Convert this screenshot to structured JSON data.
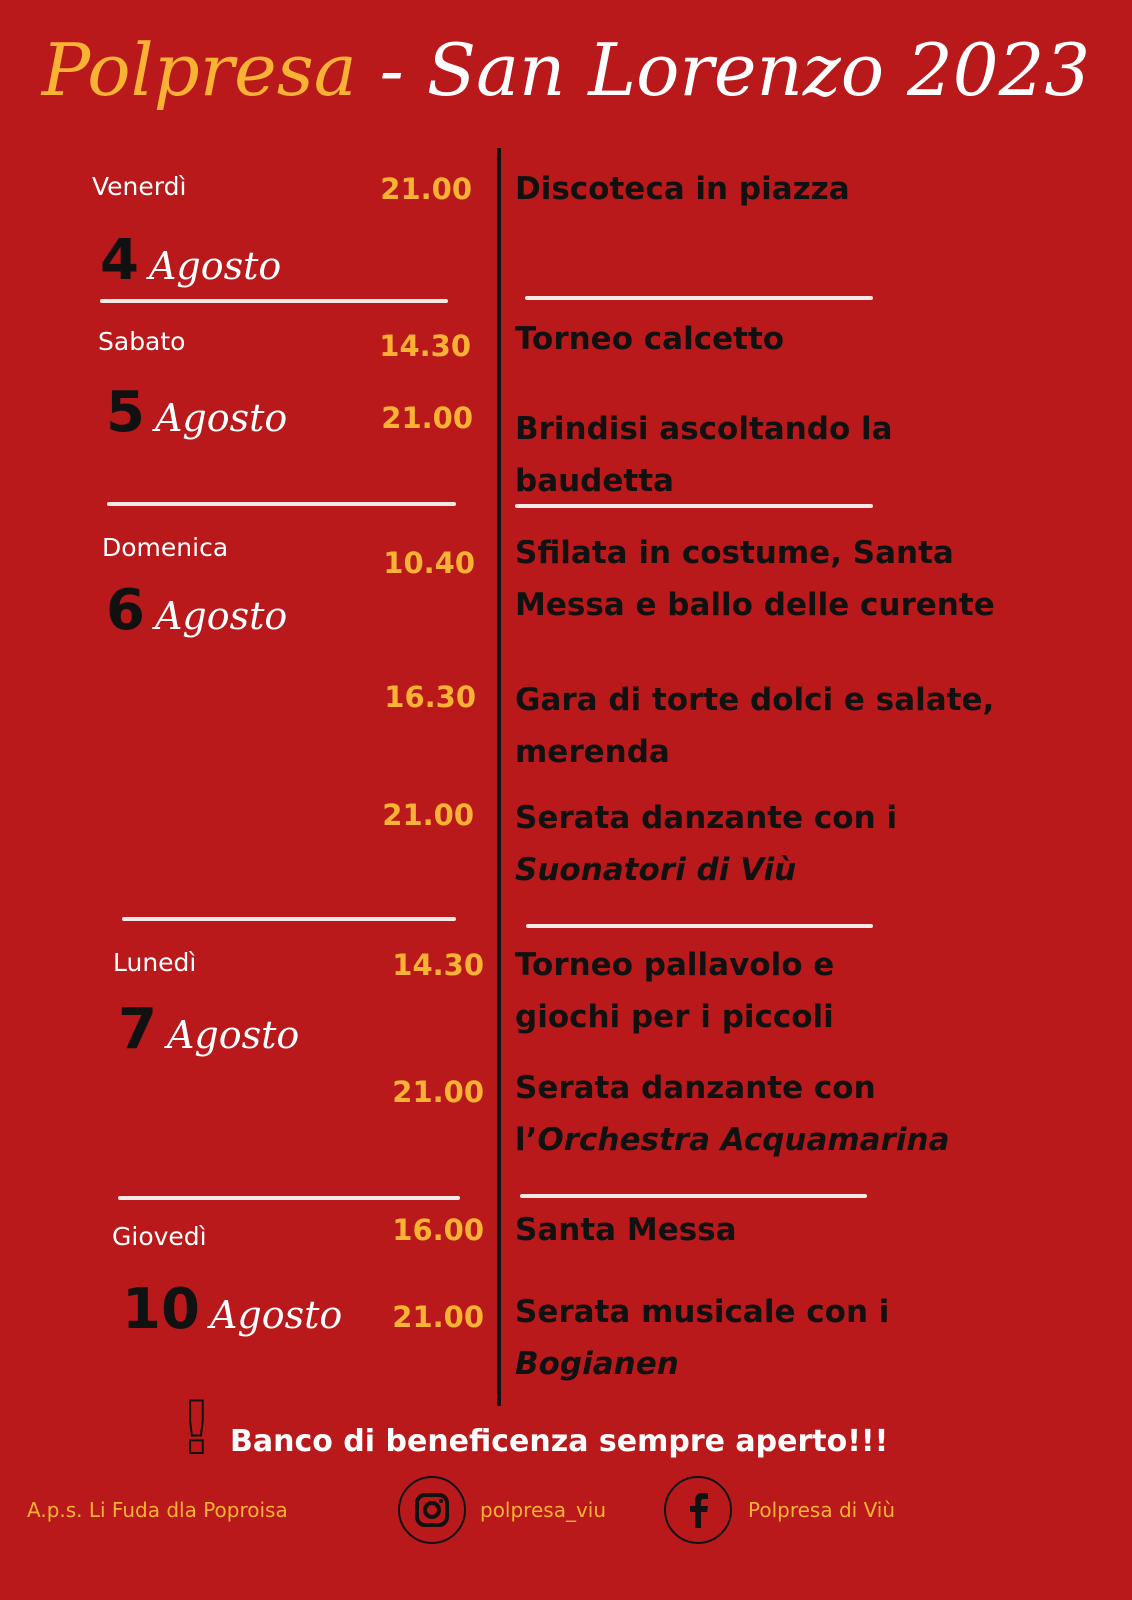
{
  "title": {
    "part1": "Polpresa",
    "part2": " - San Lorenzo 2023"
  },
  "colors": {
    "background": "#b9191b",
    "accent": "#f9b233",
    "text": "#111111",
    "light": "#ffffff"
  },
  "days": [
    {
      "weekday": "Venerdì",
      "day": "4",
      "month": "Agosto"
    },
    {
      "weekday": "Sabato",
      "day": "5",
      "month": "Agosto"
    },
    {
      "weekday": "Domenica",
      "day": "6",
      "month": "Agosto"
    },
    {
      "weekday": "Lunedì",
      "day": "7",
      "month": "Agosto"
    },
    {
      "weekday": "Giovedì",
      "day": "10",
      "month": "Agosto"
    }
  ],
  "events": [
    {
      "time": "21.00",
      "lines": [
        {
          "text": "Discoteca in piazza"
        }
      ]
    },
    {
      "time": "14.30",
      "lines": [
        {
          "text": "Torneo calcetto"
        }
      ]
    },
    {
      "time": "21.00",
      "lines": [
        {
          "text": "Brindisi ascoltando la"
        },
        {
          "text": "baudetta"
        }
      ]
    },
    {
      "time": "10.40",
      "lines": [
        {
          "text": "Sfilata in costume, Santa"
        },
        {
          "text": "Messa e ballo delle curente"
        }
      ]
    },
    {
      "time": "16.30",
      "lines": [
        {
          "text": "Gara di torte dolci e salate,"
        },
        {
          "text": "merenda"
        }
      ]
    },
    {
      "time": "21.00",
      "lines": [
        {
          "text": "Serata danzante con i"
        },
        {
          "italic": "Suonatori di Viù"
        }
      ]
    },
    {
      "time": "14.30",
      "lines": [
        {
          "text": "Torneo pallavolo e"
        },
        {
          "text": "giochi per i piccoli"
        }
      ]
    },
    {
      "time": "21.00",
      "lines": [
        {
          "text": "Serata danzante con"
        },
        {
          "text": "l’",
          "italic": "Orchestra Acquamarina"
        }
      ]
    },
    {
      "time": "16.00",
      "lines": [
        {
          "text": "Santa Messa"
        }
      ]
    },
    {
      "time": "21.00",
      "lines": [
        {
          "text": "Serata musicale con i"
        },
        {
          "italic": "Bogianen"
        }
      ]
    }
  ],
  "banner": "Banco di beneficenza sempre aperto!!!",
  "footer": {
    "association": "A.p.s. Li Fuda dla Poproisa",
    "instagram": "polpresa_viu",
    "facebook": "Polpresa di Viù",
    "instagram_icon": "instagram-icon",
    "facebook_icon": "facebook-icon"
  }
}
